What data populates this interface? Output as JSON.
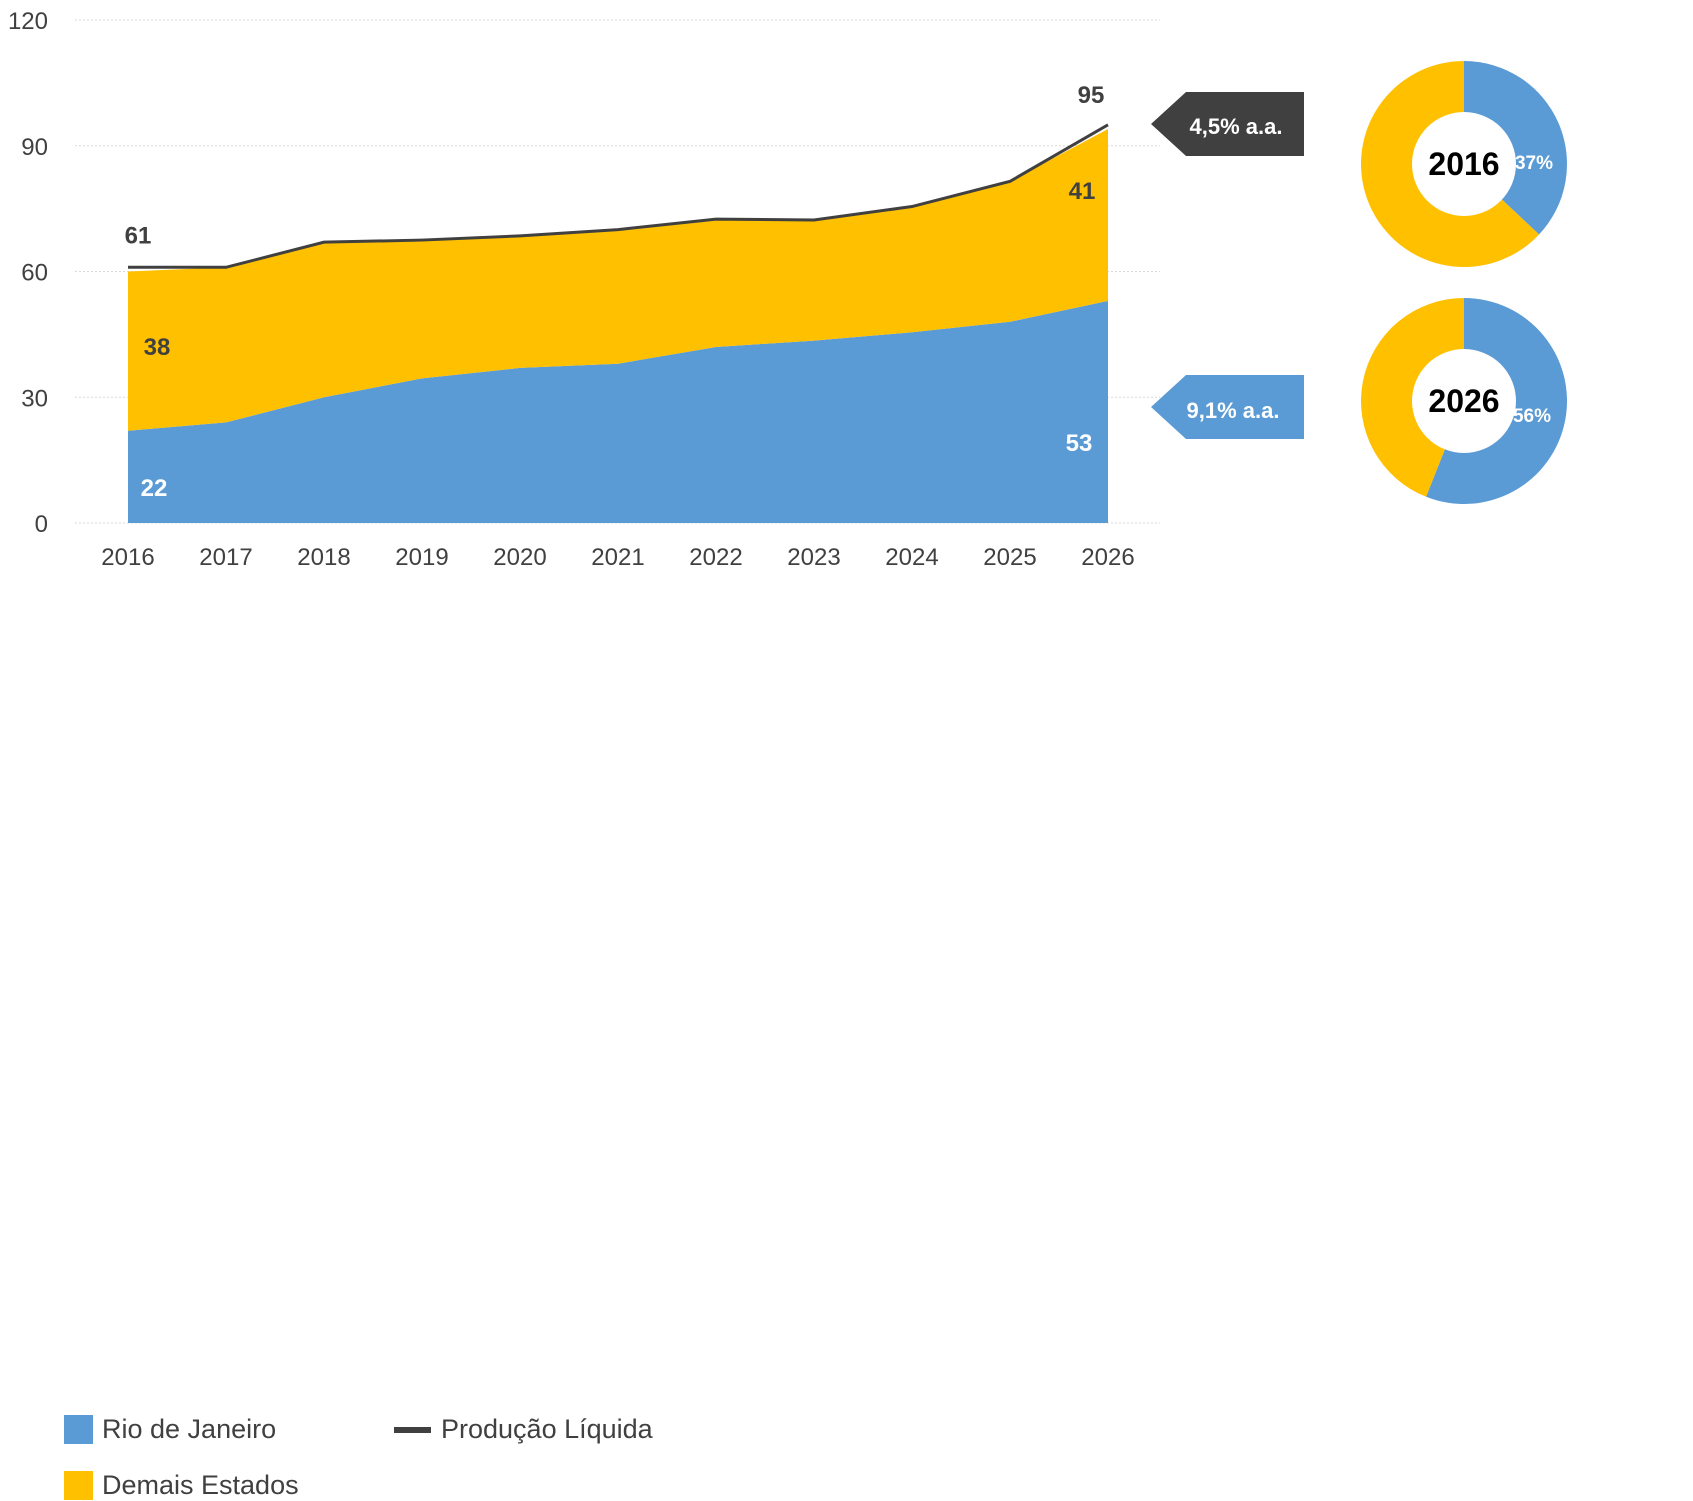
{
  "chart_data": [
    {
      "type": "area",
      "x": [
        "2016",
        "2017",
        "2018",
        "2019",
        "2020",
        "2021",
        "2022",
        "2023",
        "2024",
        "2025",
        "2026"
      ],
      "ylim": [
        0,
        120
      ],
      "yticks": [
        0,
        30,
        60,
        90,
        120
      ],
      "grid": true,
      "series": [
        {
          "name": "Rio de Janeiro",
          "kind": "area",
          "color": "#5B9BD5",
          "values": [
            22,
            24,
            30,
            34.5,
            37,
            38,
            42,
            43.5,
            45.5,
            48,
            53
          ]
        },
        {
          "name": "Demais Estados",
          "kind": "area",
          "color": "#FFC000",
          "values": [
            38,
            37,
            36.8,
            33,
            31.5,
            32,
            30.5,
            28.8,
            30,
            33.5,
            41
          ]
        },
        {
          "name": "Produção Líquida",
          "kind": "line",
          "color": "#404040",
          "values": [
            61,
            61,
            67,
            67.5,
            68.5,
            70,
            72.5,
            72.3,
            75.5,
            81.5,
            95
          ]
        }
      ],
      "data_labels": {
        "total_start": "61",
        "total_end": "95",
        "demais_start": "38",
        "demais_end": "41",
        "rio_start": "22",
        "rio_end": "53"
      },
      "legend_position": "bottom-left"
    },
    {
      "type": "pie",
      "center_label": "2016",
      "slices": [
        {
          "name": "Rio de Janeiro",
          "value": 37,
          "color": "#5B9BD5",
          "label": "37%"
        },
        {
          "name": "Demais Estados",
          "value": 63,
          "color": "#FFC000"
        }
      ]
    },
    {
      "type": "pie",
      "center_label": "2026",
      "slices": [
        {
          "name": "Rio de Janeiro",
          "value": 56,
          "color": "#5B9BD5",
          "label": "56%"
        },
        {
          "name": "Demais Estados",
          "value": 44,
          "color": "#FFC000"
        }
      ]
    }
  ],
  "callouts": {
    "total_growth": {
      "text": "4,5% a.a.",
      "color": "#404040"
    },
    "rio_growth": {
      "text": "9,1% a.a.",
      "color": "#5B9BD5"
    }
  },
  "legend": {
    "rio": "Rio de Janeiro",
    "line": "Produção Líquida",
    "demais": "Demais Estados"
  }
}
